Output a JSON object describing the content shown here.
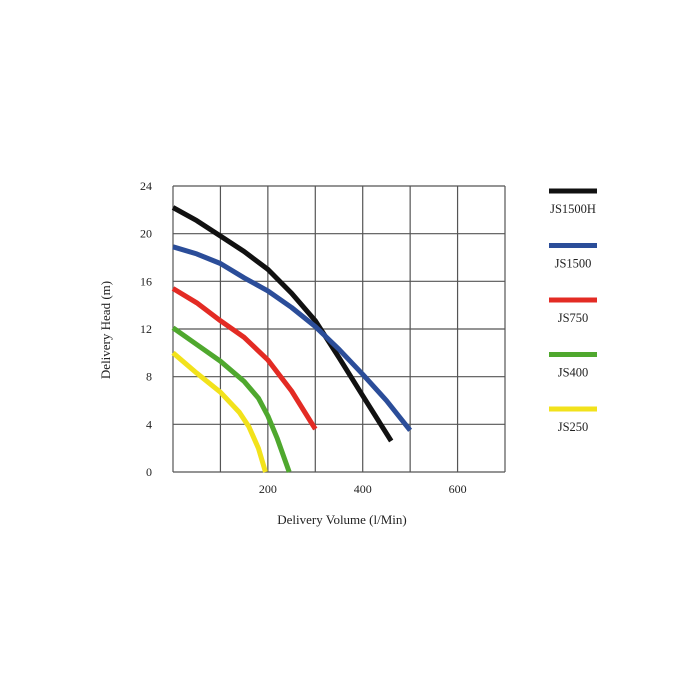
{
  "chart_data": {
    "type": "line",
    "xlabel": "Delivery Volume (l/Min)",
    "ylabel": "Delivery Head (m)",
    "xlim": [
      0,
      700
    ],
    "ylim": [
      0,
      24
    ],
    "x_ticks": [
      200,
      400,
      600
    ],
    "y_ticks": [
      0,
      4,
      8,
      12,
      16,
      20,
      24
    ],
    "grid": true,
    "legend": "right",
    "series": [
      {
        "name": "JS1500H",
        "color": "#111111",
        "points": [
          [
            0,
            22.2
          ],
          [
            50,
            21.1
          ],
          [
            100,
            19.8
          ],
          [
            150,
            18.5
          ],
          [
            200,
            17.0
          ],
          [
            250,
            15.0
          ],
          [
            300,
            12.7
          ],
          [
            350,
            9.6
          ],
          [
            400,
            6.4
          ],
          [
            460,
            2.6
          ]
        ]
      },
      {
        "name": "JS1500",
        "color": "#2b4d99",
        "points": [
          [
            0,
            18.9
          ],
          [
            50,
            18.3
          ],
          [
            100,
            17.5
          ],
          [
            150,
            16.3
          ],
          [
            200,
            15.2
          ],
          [
            250,
            13.8
          ],
          [
            300,
            12.2
          ],
          [
            350,
            10.3
          ],
          [
            400,
            8.2
          ],
          [
            450,
            6.0
          ],
          [
            500,
            3.5
          ]
        ]
      },
      {
        "name": "JS750",
        "color": "#e32b24",
        "points": [
          [
            0,
            15.4
          ],
          [
            50,
            14.2
          ],
          [
            100,
            12.7
          ],
          [
            150,
            11.3
          ],
          [
            200,
            9.4
          ],
          [
            250,
            6.8
          ],
          [
            300,
            3.6
          ]
        ]
      },
      {
        "name": "JS400",
        "color": "#4fa82e",
        "points": [
          [
            0,
            12.1
          ],
          [
            50,
            10.7
          ],
          [
            100,
            9.3
          ],
          [
            150,
            7.6
          ],
          [
            180,
            6.2
          ],
          [
            200,
            4.7
          ],
          [
            220,
            2.8
          ],
          [
            245,
            0.0
          ]
        ]
      },
      {
        "name": "JS250",
        "color": "#f2e21b",
        "points": [
          [
            0,
            10.0
          ],
          [
            50,
            8.3
          ],
          [
            100,
            6.7
          ],
          [
            140,
            5.0
          ],
          [
            160,
            3.8
          ],
          [
            180,
            2.0
          ],
          [
            195,
            0.0
          ]
        ]
      }
    ]
  }
}
